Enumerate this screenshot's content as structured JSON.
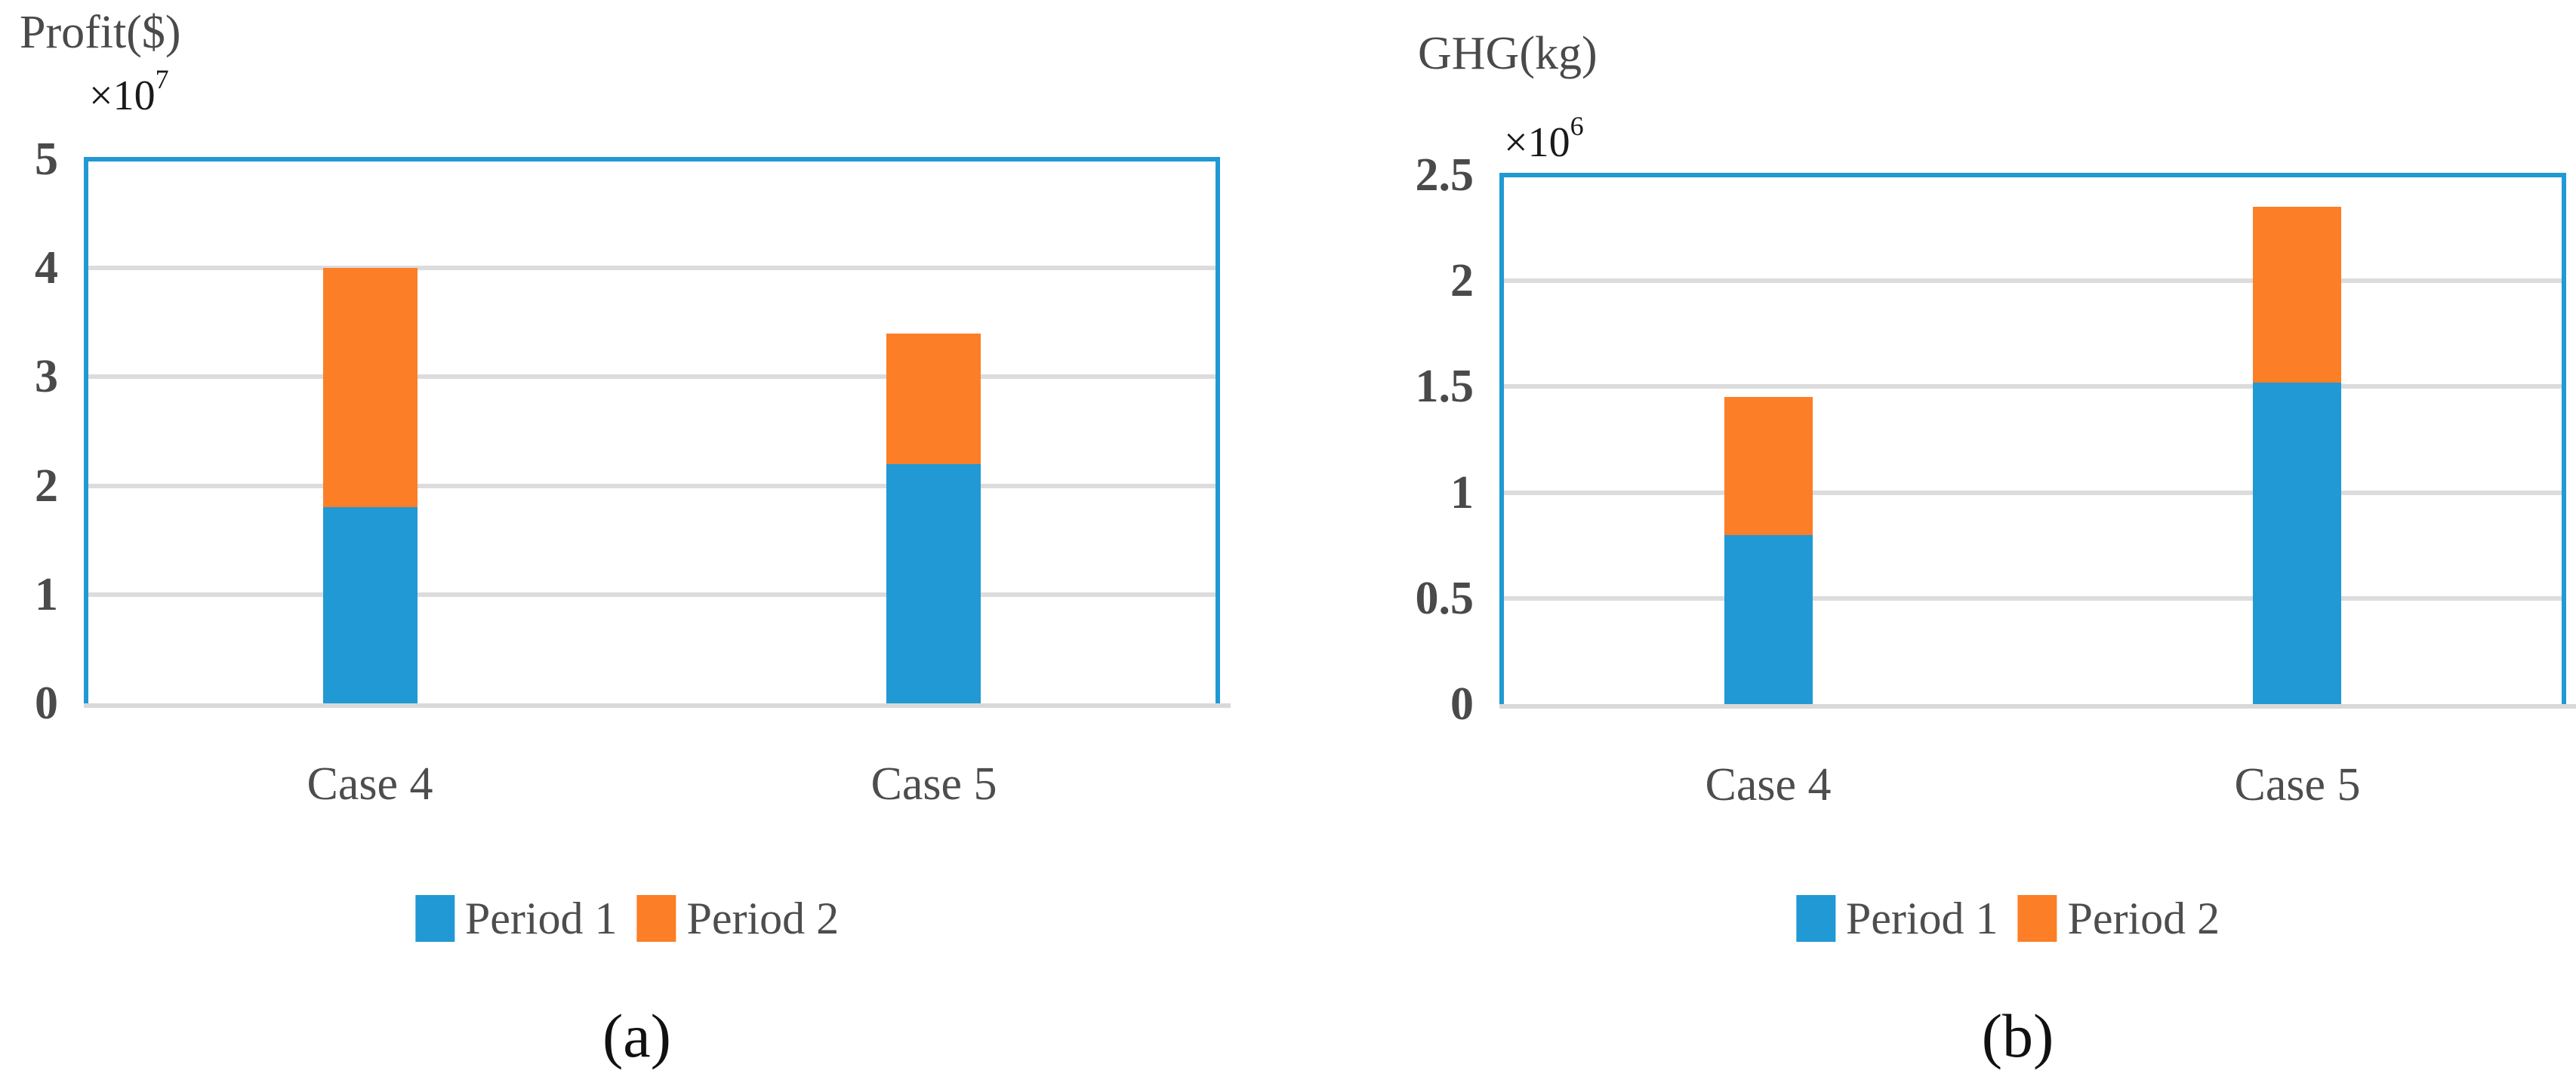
{
  "figure": {
    "background_color": "#ffffff"
  },
  "chart_data": [
    {
      "type": "bar",
      "stacked": true,
      "title": "Profit($)",
      "caption": "(a)",
      "scale_base": "×10",
      "scale_exponent": "7",
      "categories": [
        "Case 4",
        "Case 5"
      ],
      "series": [
        {
          "name": "Period 1",
          "color": "#2099d4",
          "values": [
            1.8,
            2.2
          ]
        },
        {
          "name": "Period 2",
          "color": "#fc7e26",
          "values": [
            2.2,
            1.2
          ]
        }
      ],
      "stack_totals": [
        4.0,
        3.4
      ],
      "ylim": [
        0,
        5
      ],
      "yticks": [
        0,
        1,
        2,
        3,
        4,
        5
      ],
      "ytick_labels": [
        "0",
        "1",
        "2",
        "3",
        "4",
        "5"
      ],
      "grid": true,
      "legend_position": "bottom",
      "frame_color": "#2099d4",
      "grid_color": "#dcdcdc",
      "axis_line_color": "#d9d9d9",
      "text_color": "#4a4a4a"
    },
    {
      "type": "bar",
      "stacked": true,
      "title": "GHG(kg)",
      "caption": "(b)",
      "scale_base": "×10",
      "scale_exponent": "6",
      "categories": [
        "Case 4",
        "Case 5"
      ],
      "series": [
        {
          "name": "Period 1",
          "color": "#2099d4",
          "values": [
            0.8,
            1.52
          ]
        },
        {
          "name": "Period 2",
          "color": "#fc7e26",
          "values": [
            0.65,
            0.83
          ]
        }
      ],
      "stack_totals": [
        1.45,
        2.35
      ],
      "ylim": [
        0,
        2.5
      ],
      "yticks": [
        0,
        0.5,
        1,
        1.5,
        2,
        2.5
      ],
      "ytick_labels": [
        "0",
        "0.5",
        "1",
        "1.5",
        "2",
        "2.5"
      ],
      "grid": true,
      "legend_position": "bottom",
      "frame_color": "#2099d4",
      "grid_color": "#dcdcdc",
      "axis_line_color": "#d9d9d9",
      "text_color": "#4a4a4a"
    }
  ]
}
